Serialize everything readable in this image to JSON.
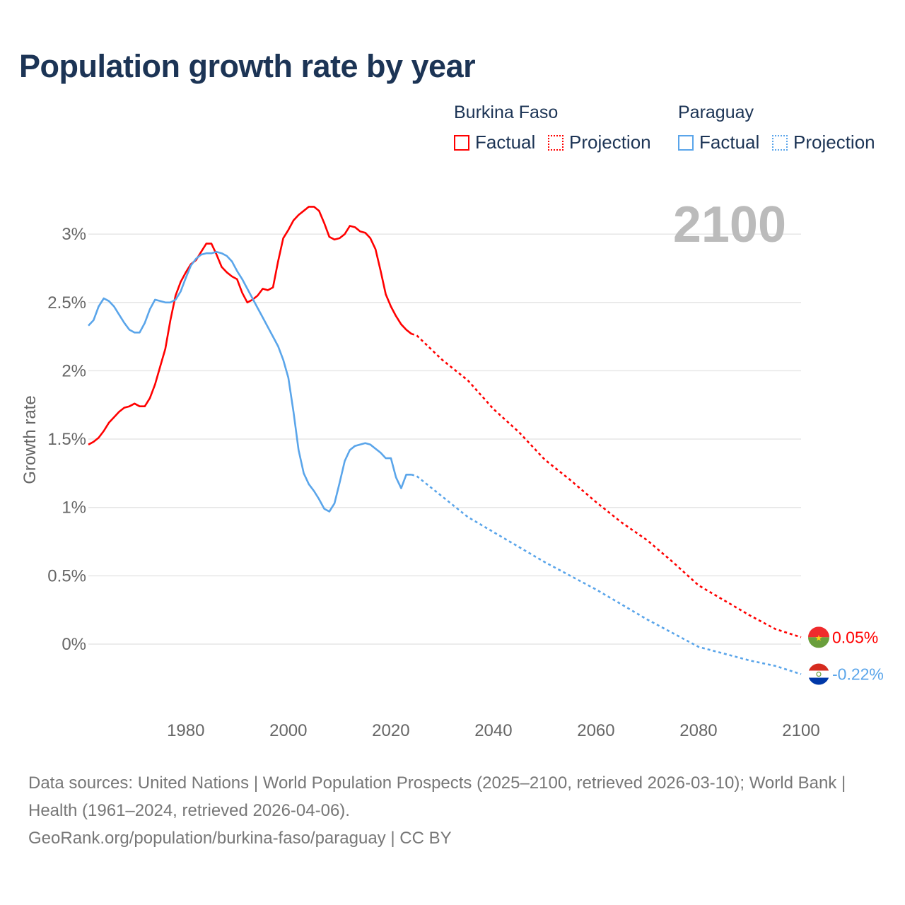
{
  "title": "Population growth rate by year",
  "legend": {
    "groups": [
      {
        "name": "Burkina Faso",
        "factual": "Factual",
        "projection": "Projection",
        "color": "#ff0000"
      },
      {
        "name": "Paraguay",
        "factual": "Factual",
        "projection": "Projection",
        "color": "#5aa5ea"
      }
    ]
  },
  "footer": {
    "sources": "Data sources: United Nations | World Population Prospects (2025–2100, retrieved 2026-03-10); World Bank | Health (1961–2024, retrieved 2026-04-06).",
    "link": "GeoRank.org/population/burkina-faso/paraguay | CC BY"
  },
  "chart_data": {
    "type": "line",
    "title": "Population growth rate by year",
    "xlabel": "",
    "ylabel": "Growth rate",
    "xlim": [
      1961,
      2100
    ],
    "ylim": [
      -0.5,
      3.3
    ],
    "x_ticks": [
      1980,
      2000,
      2020,
      2040,
      2060,
      2080,
      2100
    ],
    "x_tick_labels": [
      "1980",
      "2000",
      "2020",
      "2040",
      "2060",
      "2080",
      "2100"
    ],
    "y_ticks": [
      0,
      0.5,
      1,
      1.5,
      2,
      2.5,
      3
    ],
    "y_tick_labels": [
      "0%",
      "0.5%",
      "1%",
      "1.5%",
      "2%",
      "2.5%",
      "3%"
    ],
    "grid": true,
    "year_label": "2100",
    "series": [
      {
        "name": "Burkina Faso",
        "color": "#ff0000",
        "end_label": "0.05%",
        "factual": {
          "x": [
            1961,
            1962,
            1963,
            1964,
            1965,
            1966,
            1967,
            1968,
            1969,
            1970,
            1971,
            1972,
            1973,
            1974,
            1975,
            1976,
            1977,
            1978,
            1979,
            1980,
            1981,
            1982,
            1983,
            1984,
            1985,
            1986,
            1987,
            1988,
            1989,
            1990,
            1991,
            1992,
            1993,
            1994,
            1995,
            1996,
            1997,
            1998,
            1999,
            2000,
            2001,
            2002,
            2003,
            2004,
            2005,
            2006,
            2007,
            2008,
            2009,
            2010,
            2011,
            2012,
            2013,
            2014,
            2015,
            2016,
            2017,
            2018,
            2019,
            2020,
            2021,
            2022,
            2023,
            2024
          ],
          "y": [
            1.46,
            1.48,
            1.51,
            1.56,
            1.62,
            1.66,
            1.7,
            1.73,
            1.74,
            1.76,
            1.74,
            1.74,
            1.8,
            1.9,
            2.03,
            2.16,
            2.37,
            2.55,
            2.65,
            2.72,
            2.78,
            2.81,
            2.87,
            2.93,
            2.93,
            2.85,
            2.76,
            2.72,
            2.69,
            2.67,
            2.57,
            2.5,
            2.52,
            2.55,
            2.6,
            2.59,
            2.61,
            2.8,
            2.97,
            3.03,
            3.1,
            3.14,
            3.17,
            3.2,
            3.2,
            3.17,
            3.08,
            2.98,
            2.96,
            2.97,
            3.0,
            3.06,
            3.05,
            3.02,
            3.01,
            2.97,
            2.89,
            2.73,
            2.56,
            2.47,
            2.4,
            2.34,
            2.3,
            2.27
          ]
        },
        "projection": {
          "x": [
            2024,
            2025,
            2030,
            2035,
            2040,
            2045,
            2050,
            2055,
            2060,
            2065,
            2070,
            2075,
            2080,
            2085,
            2090,
            2095,
            2100
          ],
          "y": [
            2.27,
            2.26,
            2.08,
            1.93,
            1.72,
            1.55,
            1.35,
            1.2,
            1.04,
            0.89,
            0.76,
            0.6,
            0.43,
            0.32,
            0.21,
            0.11,
            0.05
          ]
        }
      },
      {
        "name": "Paraguay",
        "color": "#5aa5ea",
        "end_label": "-0.22%",
        "factual": {
          "x": [
            1961,
            1962,
            1963,
            1964,
            1965,
            1966,
            1967,
            1968,
            1969,
            1970,
            1971,
            1972,
            1973,
            1974,
            1975,
            1976,
            1977,
            1978,
            1979,
            1980,
            1981,
            1982,
            1983,
            1984,
            1985,
            1986,
            1987,
            1988,
            1989,
            1990,
            1991,
            1992,
            1993,
            1994,
            1995,
            1996,
            1997,
            1998,
            1999,
            2000,
            2001,
            2002,
            2003,
            2004,
            2005,
            2006,
            2007,
            2008,
            2009,
            2010,
            2011,
            2012,
            2013,
            2014,
            2015,
            2016,
            2017,
            2018,
            2019,
            2020,
            2021,
            2022,
            2023,
            2024
          ],
          "y": [
            2.33,
            2.37,
            2.47,
            2.53,
            2.51,
            2.47,
            2.41,
            2.35,
            2.3,
            2.28,
            2.28,
            2.35,
            2.45,
            2.52,
            2.51,
            2.5,
            2.5,
            2.52,
            2.58,
            2.68,
            2.77,
            2.82,
            2.85,
            2.86,
            2.86,
            2.87,
            2.86,
            2.84,
            2.8,
            2.73,
            2.67,
            2.6,
            2.53,
            2.46,
            2.39,
            2.32,
            2.25,
            2.18,
            2.08,
            1.95,
            1.7,
            1.42,
            1.25,
            1.17,
            1.12,
            1.06,
            0.99,
            0.97,
            1.03,
            1.18,
            1.34,
            1.42,
            1.45,
            1.46,
            1.47,
            1.46,
            1.43,
            1.4,
            1.36,
            1.36,
            1.22,
            1.14,
            1.24,
            1.24
          ]
        },
        "projection": {
          "x": [
            2024,
            2025,
            2030,
            2035,
            2040,
            2045,
            2050,
            2055,
            2060,
            2065,
            2070,
            2075,
            2080,
            2085,
            2090,
            2095,
            2100
          ],
          "y": [
            1.24,
            1.23,
            1.08,
            0.93,
            0.82,
            0.71,
            0.6,
            0.5,
            0.4,
            0.29,
            0.18,
            0.08,
            -0.02,
            -0.07,
            -0.12,
            -0.16,
            -0.22
          ]
        }
      }
    ]
  }
}
